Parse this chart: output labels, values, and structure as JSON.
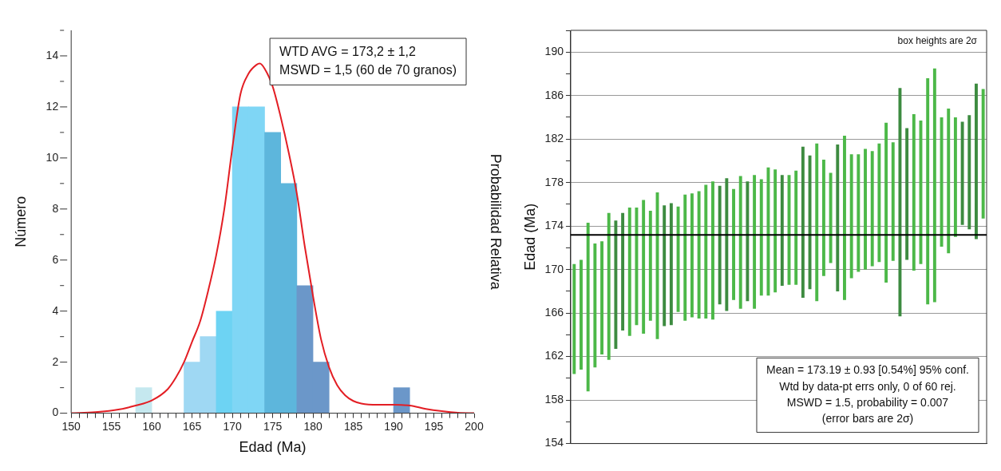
{
  "chart_data": [
    {
      "type": "histogram",
      "xlabel": "Edad (Ma)",
      "ylabel": "Número",
      "y2label": "Probabilidad Relativa",
      "bins": [
        150,
        152,
        154,
        156,
        158,
        160,
        162,
        164,
        166,
        168,
        170,
        172,
        174,
        176,
        178,
        180,
        182,
        184,
        186,
        188,
        190,
        192,
        194,
        196,
        198,
        200
      ],
      "values": [
        0,
        0,
        0,
        0,
        1,
        0,
        0,
        2,
        3,
        4,
        12,
        12,
        11,
        9,
        5,
        2,
        0,
        0,
        0,
        0,
        1,
        0,
        0,
        0,
        0
      ],
      "colors": [
        "#c5e8ef",
        "#c5e8ef",
        "#c5e8ef",
        "#c5e8ef",
        "#c5e8ef",
        "#9fd8f3",
        "#9fd8f3",
        "#9fd8f3",
        "#9fd8f3",
        "#6dd3f3",
        "#7fd6f5",
        "#7fd6f5",
        "#5db6dc",
        "#5db6dc",
        "#6b97c9",
        "#6b97c9",
        "#6b97c9",
        "#6b97c9",
        "#6b97c9",
        "#6b97c9",
        "#6b97c9",
        "#6b97c9",
        "#6b97c9",
        "#6b97c9",
        "#6b97c9"
      ],
      "series": [
        {
          "type": "line",
          "color": "#e31e24",
          "x": [
            150,
            153,
            156,
            158,
            160,
            162,
            163,
            164,
            165,
            166,
            167,
            168,
            169,
            170,
            171,
            172,
            173,
            173.4,
            174,
            175,
            176,
            177,
            178,
            179,
            180,
            181,
            182,
            183,
            184,
            185,
            186,
            188,
            190,
            192,
            194,
            196,
            198,
            200
          ],
          "values": [
            0,
            0.04,
            0.15,
            0.3,
            0.5,
            0.95,
            1.4,
            2,
            2.8,
            3.6,
            4.8,
            6.2,
            8,
            10.4,
            12.5,
            13.3,
            13.65,
            13.7,
            13.5,
            12.8,
            11.6,
            10.2,
            8.6,
            6.5,
            4.6,
            2.9,
            1.8,
            1.1,
            0.7,
            0.48,
            0.38,
            0.33,
            0.33,
            0.3,
            0.17,
            0.08,
            0.02,
            0
          ]
        }
      ],
      "xlim": [
        150,
        200
      ],
      "xticks": [
        150,
        {
          "value": 151,
          "label": null
        },
        {
          "value": 152,
          "label": null
        },
        {
          "value": 153,
          "label": null
        },
        {
          "value": 154,
          "label": null
        },
        155,
        {
          "value": 156,
          "label": null
        },
        {
          "value": 157,
          "label": null
        },
        {
          "value": 158,
          "label": null
        },
        {
          "value": 159,
          "label": null
        },
        160,
        {
          "value": 161,
          "label": null
        },
        {
          "value": 162,
          "label": null
        },
        {
          "value": 163,
          "label": null
        },
        {
          "value": 164,
          "label": null
        },
        165,
        {
          "value": 166,
          "label": null
        },
        {
          "value": 167,
          "label": null
        },
        {
          "value": 168,
          "label": null
        },
        {
          "value": 169,
          "label": null
        },
        170,
        {
          "value": 171,
          "label": null
        },
        {
          "value": 172,
          "label": null
        },
        {
          "value": 173,
          "label": null
        },
        {
          "value": 174,
          "label": null
        },
        175,
        {
          "value": 176,
          "label": null
        },
        {
          "value": 177,
          "label": null
        },
        {
          "value": 178,
          "label": null
        },
        {
          "value": 179,
          "label": null
        },
        180,
        {
          "value": 181,
          "label": null
        },
        {
          "value": 182,
          "label": null
        },
        {
          "value": 183,
          "label": null
        },
        {
          "value": 184,
          "label": null
        },
        185,
        {
          "value": 186,
          "label": null
        },
        {
          "value": 187,
          "label": null
        },
        {
          "value": 188,
          "label": null
        },
        {
          "value": 189,
          "label": null
        },
        190,
        {
          "value": 191,
          "label": null
        },
        {
          "value": 192,
          "label": null
        },
        {
          "value": 193,
          "label": null
        },
        {
          "value": 194,
          "label": null
        },
        195,
        {
          "value": 196,
          "label": null
        },
        {
          "value": 197,
          "label": null
        },
        {
          "value": 198,
          "label": null
        },
        {
          "value": 199,
          "label": null
        },
        200
      ],
      "ylim": [
        0,
        15
      ],
      "yticks": [
        0,
        {
          "value": 1,
          "label": null
        },
        2,
        {
          "value": 3,
          "label": null
        },
        4,
        {
          "value": 5,
          "label": null
        },
        6,
        {
          "value": 7,
          "label": null
        },
        8,
        {
          "value": 9,
          "label": null
        },
        10,
        {
          "value": 11,
          "label": null
        },
        12,
        {
          "value": 13,
          "label": null
        },
        14,
        {
          "value": 15,
          "label": null
        }
      ],
      "grid": false,
      "legend": false,
      "annotations": [
        "WTD AVG = 173,2 ± 1,2",
        "MSWD = 1,5 (60 de 70 granos)"
      ]
    },
    {
      "type": "bar",
      "ylabel": "Edad (Ma)",
      "categories": [
        null,
        null,
        null,
        null,
        null,
        null,
        null,
        null,
        null,
        null,
        null,
        null,
        null,
        null,
        null,
        null,
        null,
        null,
        null,
        null,
        null,
        null,
        null,
        null,
        null,
        null,
        null,
        null,
        null,
        null,
        null,
        null,
        null,
        null,
        null,
        null,
        null,
        null,
        null,
        null,
        null,
        null,
        null,
        null,
        null,
        null,
        null,
        null,
        null,
        null,
        null,
        null,
        null,
        null,
        null,
        null,
        null,
        null,
        null,
        null
      ],
      "base": [
        160.4,
        160.8,
        158.8,
        161.0,
        162.2,
        161.7,
        162.7,
        164.4,
        163.9,
        164.9,
        164.1,
        165.3,
        163.6,
        164.8,
        164.9,
        166.1,
        165.3,
        165.6,
        165.5,
        165.5,
        165.4,
        166.8,
        166.2,
        167.2,
        166.4,
        167.1,
        166.4,
        167.6,
        167.6,
        167.9,
        168.5,
        168.6,
        168.6,
        167.4,
        168.2,
        167.1,
        169.4,
        170.6,
        168.0,
        167.2,
        169.2,
        169.8,
        170.0,
        170.3,
        170.7,
        168.8,
        170.8,
        165.7,
        170.9,
        169.9,
        170.5,
        166.8,
        167.0,
        172.1,
        171.5,
        173.0,
        174.1,
        173.7,
        172.8,
        174.7
      ],
      "values": [
        10.1,
        10.1,
        15.5,
        11.4,
        10.4,
        13.5,
        11.8,
        10.8,
        11.8,
        10.8,
        12.3,
        10.1,
        13.5,
        11.1,
        11.2,
        9.7,
        11.6,
        11.4,
        11.7,
        12.3,
        12.7,
        10.9,
        12.2,
        10.2,
        12.2,
        11.0,
        12.3,
        10.7,
        11.8,
        11.3,
        10.2,
        10.1,
        10.5,
        13.9,
        12.3,
        14.5,
        10.7,
        8.3,
        13.5,
        15.1,
        11.4,
        10.8,
        11.1,
        10.6,
        10.9,
        14.7,
        10.9,
        21.0,
        12.1,
        14.4,
        13.2,
        20.8,
        21.5,
        11.9,
        13.3,
        11.0,
        9.5,
        10.5,
        14.3,
        11.9
      ],
      "colors": [
        "#4cb848",
        "#4cb848",
        "#4cb848",
        "#4cb848",
        "#4cb848",
        "#4cb848",
        "#3d8b40",
        "#3d8b40",
        "#4cb848",
        "#4cb848",
        "#4cb848",
        "#4cb848",
        "#4cb848",
        "#3d8b40",
        "#3d8b40",
        "#4cb848",
        "#4cb848",
        "#4cb848",
        "#4cb848",
        "#4cb848",
        "#4cb848",
        "#3d8b40",
        "#3d8b40",
        "#4cb848",
        "#4cb848",
        "#3d8b40",
        "#4cb848",
        "#4cb848",
        "#4cb848",
        "#4cb848",
        "#3d8b40",
        "#4cb848",
        "#4cb848",
        "#3d8b40",
        "#3d8b40",
        "#4cb848",
        "#4cb848",
        "#4cb848",
        "#3d8b40",
        "#4cb848",
        "#4cb848",
        "#4cb848",
        "#4cb848",
        "#4cb848",
        "#4cb848",
        "#4cb848",
        "#4cb848",
        "#3d8b40",
        "#3d8b40",
        "#4cb848",
        "#4cb848",
        "#4cb848",
        "#4cb848",
        "#4cb848",
        "#4cb848",
        "#4cb848",
        "#3d8b40",
        "#3d8b40",
        "#3d8b40",
        "#4cb848"
      ],
      "ylim": [
        154,
        192
      ],
      "yticks": [
        154,
        {
          "value": 156,
          "label": null
        },
        158,
        {
          "value": 160,
          "label": null
        },
        162,
        {
          "value": 164,
          "label": null
        },
        166,
        {
          "value": 168,
          "label": null
        },
        170,
        {
          "value": 172,
          "label": null
        },
        174,
        {
          "value": 176,
          "label": null
        },
        178,
        {
          "value": 180,
          "label": null
        },
        182,
        {
          "value": 184,
          "label": null
        },
        186,
        {
          "value": 188,
          "label": null
        },
        190,
        {
          "value": 192,
          "label": null
        }
      ],
      "ref_lines": [
        {
          "axis": "y",
          "value": 173.19,
          "color": "#000000"
        }
      ],
      "grid": "y",
      "legend": false,
      "annotations": [
        "box heights are 2σ",
        "Mean = 173.19 ± 0.93 [0.54%] 95% conf.",
        "Wtd by data-pt errs only, 0 of 60 rej.",
        "MSWD = 1.5, probability = 0.007",
        "(error bars are 2σ)"
      ]
    }
  ]
}
